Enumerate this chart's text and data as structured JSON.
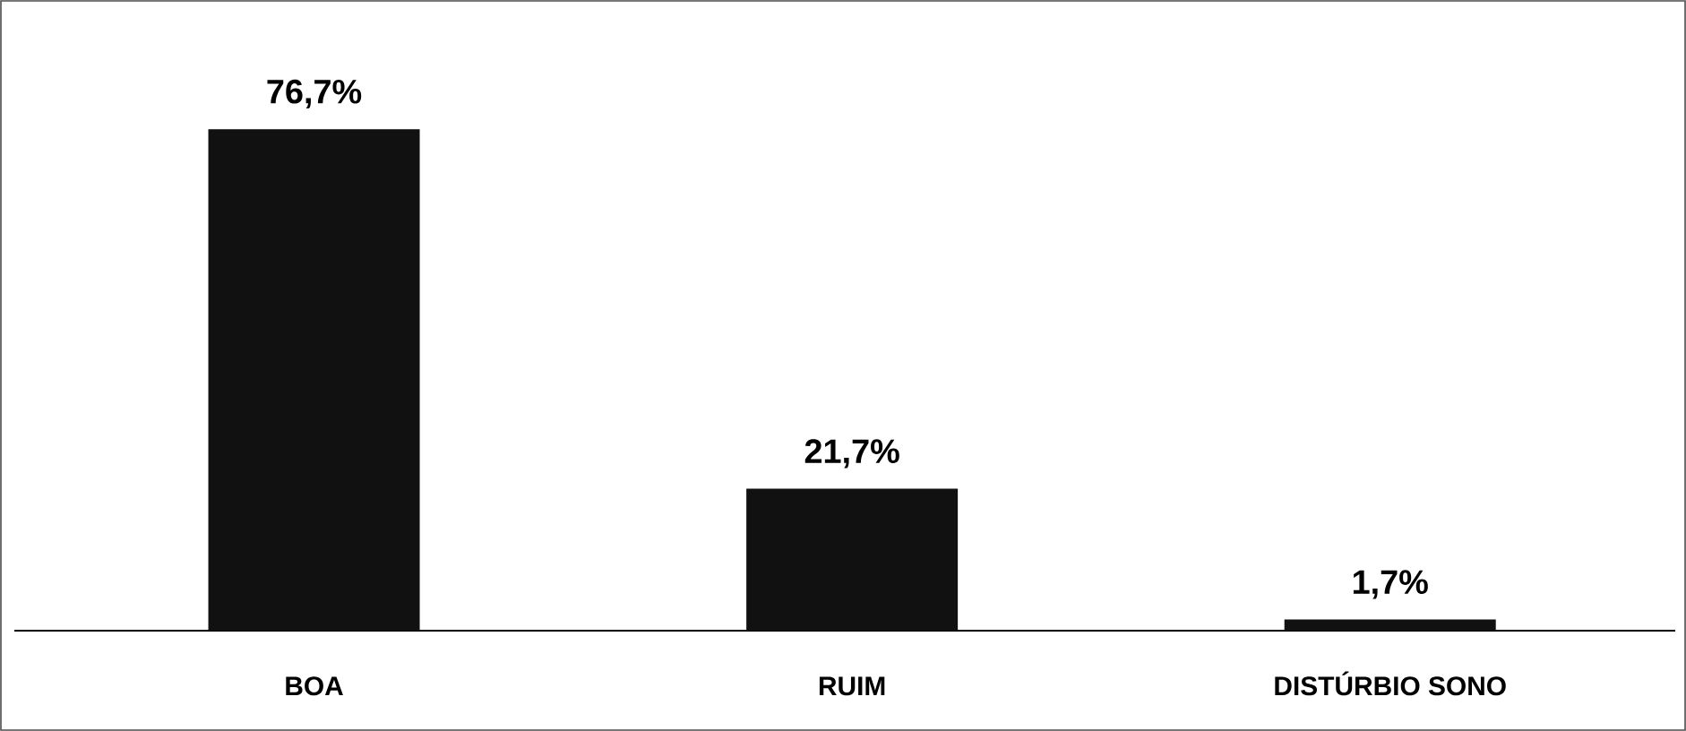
{
  "chart_data": {
    "type": "bar",
    "categories": [
      "BOA",
      "RUIM",
      "DISTÚRBIO SONO"
    ],
    "values": [
      76.7,
      21.7,
      1.7
    ],
    "value_labels": [
      "76,7%",
      "21,7%",
      "1,7%"
    ],
    "color": "#111111"
  }
}
